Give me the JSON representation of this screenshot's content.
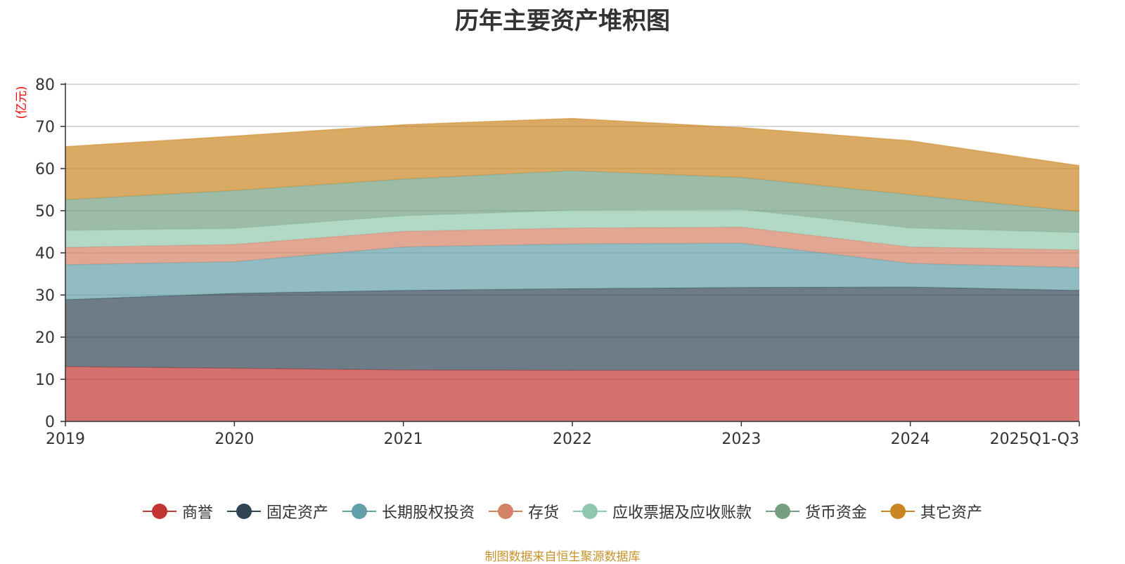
{
  "chart_data": {
    "type": "area",
    "stacked": true,
    "title": "历年主要资产堆积图",
    "ylabel": "(亿元)",
    "xlabel": "",
    "categories": [
      "2019",
      "2020",
      "2021",
      "2022",
      "2023",
      "2024",
      "2025Q1-Q3"
    ],
    "ylim": [
      0,
      80
    ],
    "yticks": [
      0,
      10,
      20,
      30,
      40,
      50,
      60,
      70,
      80
    ],
    "grid": true,
    "legend_position": "bottom",
    "series": [
      {
        "name": "商誉",
        "color": "#c23531",
        "values": [
          13.0,
          12.6,
          12.2,
          12.1,
          12.1,
          12.1,
          12.1
        ]
      },
      {
        "name": "固定资产",
        "color": "#2f4554",
        "values": [
          15.9,
          17.8,
          18.9,
          19.4,
          19.7,
          19.8,
          19.0
        ]
      },
      {
        "name": "长期股权投资",
        "color": "#61a0a8",
        "values": [
          8.3,
          7.5,
          10.3,
          10.6,
          10.5,
          5.6,
          5.4
        ]
      },
      {
        "name": "存货",
        "color": "#d48265",
        "values": [
          4.1,
          4.1,
          3.7,
          3.8,
          3.8,
          3.9,
          4.2
        ]
      },
      {
        "name": "应收票据及应收账款",
        "color": "#91c7ae",
        "values": [
          4.0,
          3.8,
          3.7,
          4.2,
          4.2,
          4.5,
          4.1
        ]
      },
      {
        "name": "货币资金",
        "color": "#749f83",
        "values": [
          7.3,
          9.0,
          8.7,
          9.4,
          7.6,
          7.9,
          5.0
        ]
      },
      {
        "name": "其它资产",
        "color": "#ca8622",
        "values": [
          12.6,
          12.9,
          12.9,
          12.4,
          11.8,
          12.8,
          10.9
        ]
      }
    ]
  },
  "footer": {
    "source": "制图数据来自恒生聚源数据库"
  }
}
